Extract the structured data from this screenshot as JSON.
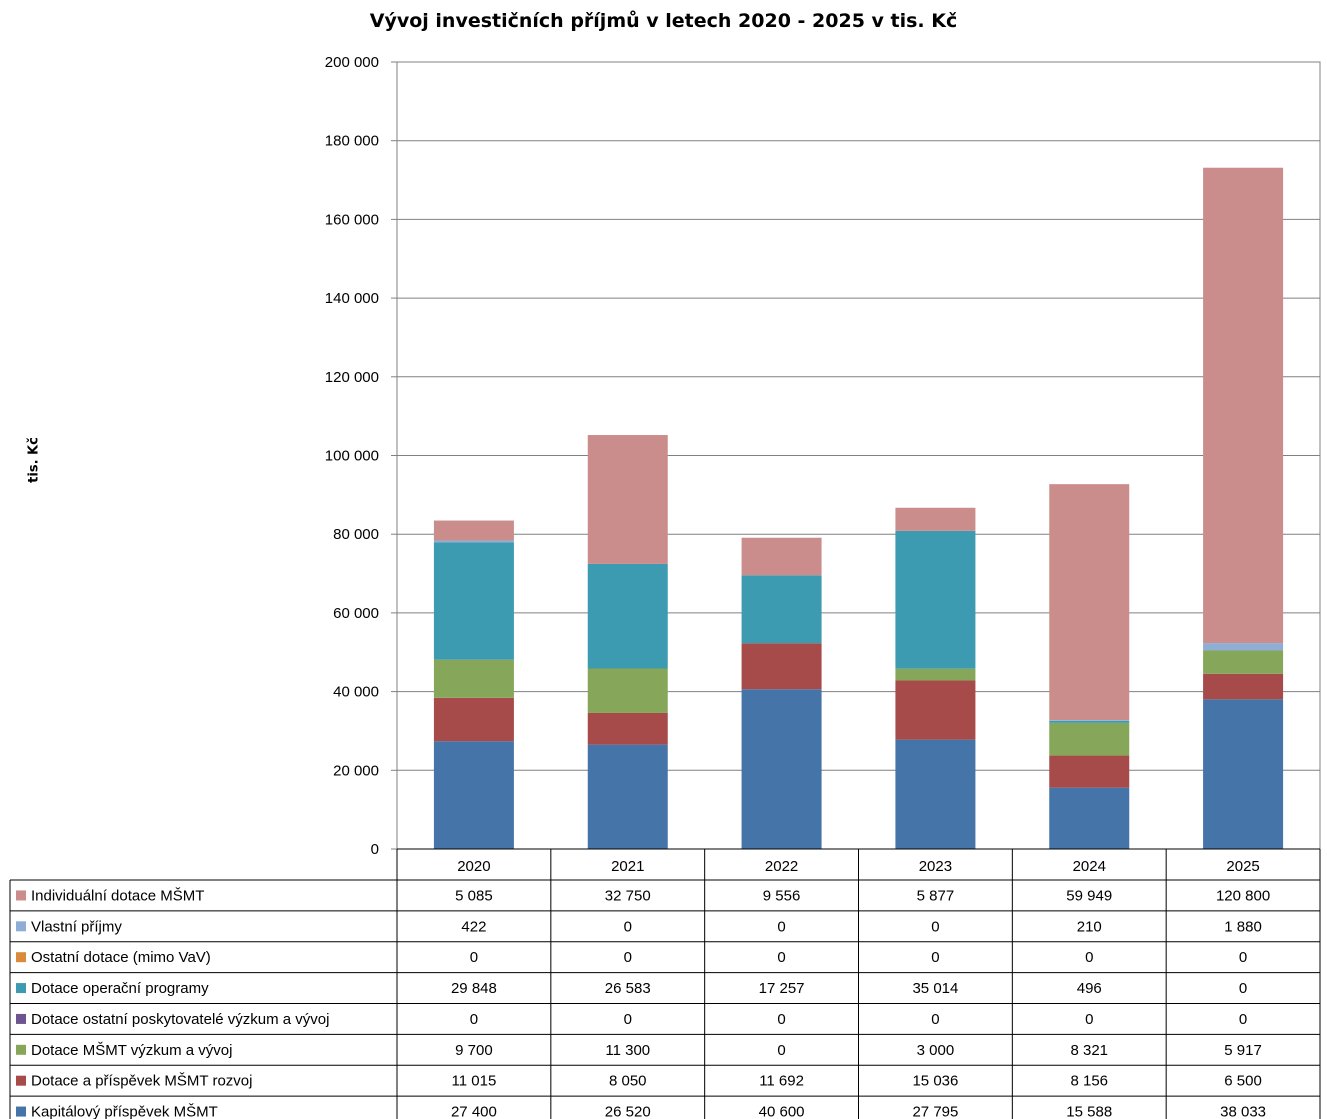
{
  "chart_data": {
    "type": "bar",
    "stacked": true,
    "title": "Vývoj investičních příjmů v letech 2020 - 2025 v tis. Kč",
    "ylabel": "tis. Kč",
    "xlabel": "",
    "ylim": [
      0,
      200000
    ],
    "y_ticks": [
      "0",
      "20 000",
      "40 000",
      "60 000",
      "80 000",
      "100 000",
      "120 000",
      "140 000",
      "160 000",
      "180 000",
      "200 000"
    ],
    "grid": true,
    "legend": "data-table-below",
    "categories": [
      "2020",
      "2021",
      "2022",
      "2023",
      "2024",
      "2025"
    ],
    "series": [
      {
        "name": "Kapitálový příspěvek MŠMT",
        "color": "#4574A8",
        "values": [
          27400,
          26520,
          40600,
          27795,
          15588,
          38033
        ],
        "labels": [
          "27 400",
          "26 520",
          "40 600",
          "27 795",
          "15 588",
          "38 033"
        ]
      },
      {
        "name": "Dotace a příspěvek MŠMT rozvoj",
        "color": "#A64B4A",
        "values": [
          11015,
          8050,
          11692,
          15036,
          8156,
          6500
        ],
        "labels": [
          "11 015",
          "8 050",
          "11 692",
          "15 036",
          "8 156",
          "6 500"
        ]
      },
      {
        "name": "Dotace MŠMT výzkum a vývoj",
        "color": "#86A75A",
        "values": [
          9700,
          11300,
          0,
          3000,
          8321,
          5917
        ],
        "labels": [
          "9 700",
          "11 300",
          "0",
          "3 000",
          "8 321",
          "5 917"
        ]
      },
      {
        "name": "Dotace ostatní poskytovatelé výzkum a vývoj",
        "color": "#6E5590",
        "values": [
          0,
          0,
          0,
          0,
          0,
          0
        ],
        "labels": [
          "0",
          "0",
          "0",
          "0",
          "0",
          "0"
        ]
      },
      {
        "name": "Dotace operační programy",
        "color": "#3C9BB0",
        "values": [
          29848,
          26583,
          17257,
          35014,
          496,
          0
        ],
        "labels": [
          "29 848",
          "26 583",
          "17 257",
          "35 014",
          "496",
          "0"
        ]
      },
      {
        "name": "Ostatní dotace (mimo VaV)",
        "color": "#D98A3B",
        "values": [
          0,
          0,
          0,
          0,
          0,
          0
        ],
        "labels": [
          "0",
          "0",
          "0",
          "0",
          "0",
          "0"
        ]
      },
      {
        "name": "Vlastní příjmy",
        "color": "#8FAED6",
        "values": [
          422,
          0,
          0,
          0,
          210,
          1880
        ],
        "labels": [
          "422",
          "0",
          "0",
          "0",
          "210",
          "1 880"
        ]
      },
      {
        "name": "Individuální dotace MŠMT",
        "color": "#CB8D8C",
        "values": [
          5085,
          32750,
          9556,
          5877,
          59949,
          120800
        ],
        "labels": [
          "5 085",
          "32 750",
          "9 556",
          "5 877",
          "59 949",
          "120 800"
        ]
      }
    ]
  }
}
